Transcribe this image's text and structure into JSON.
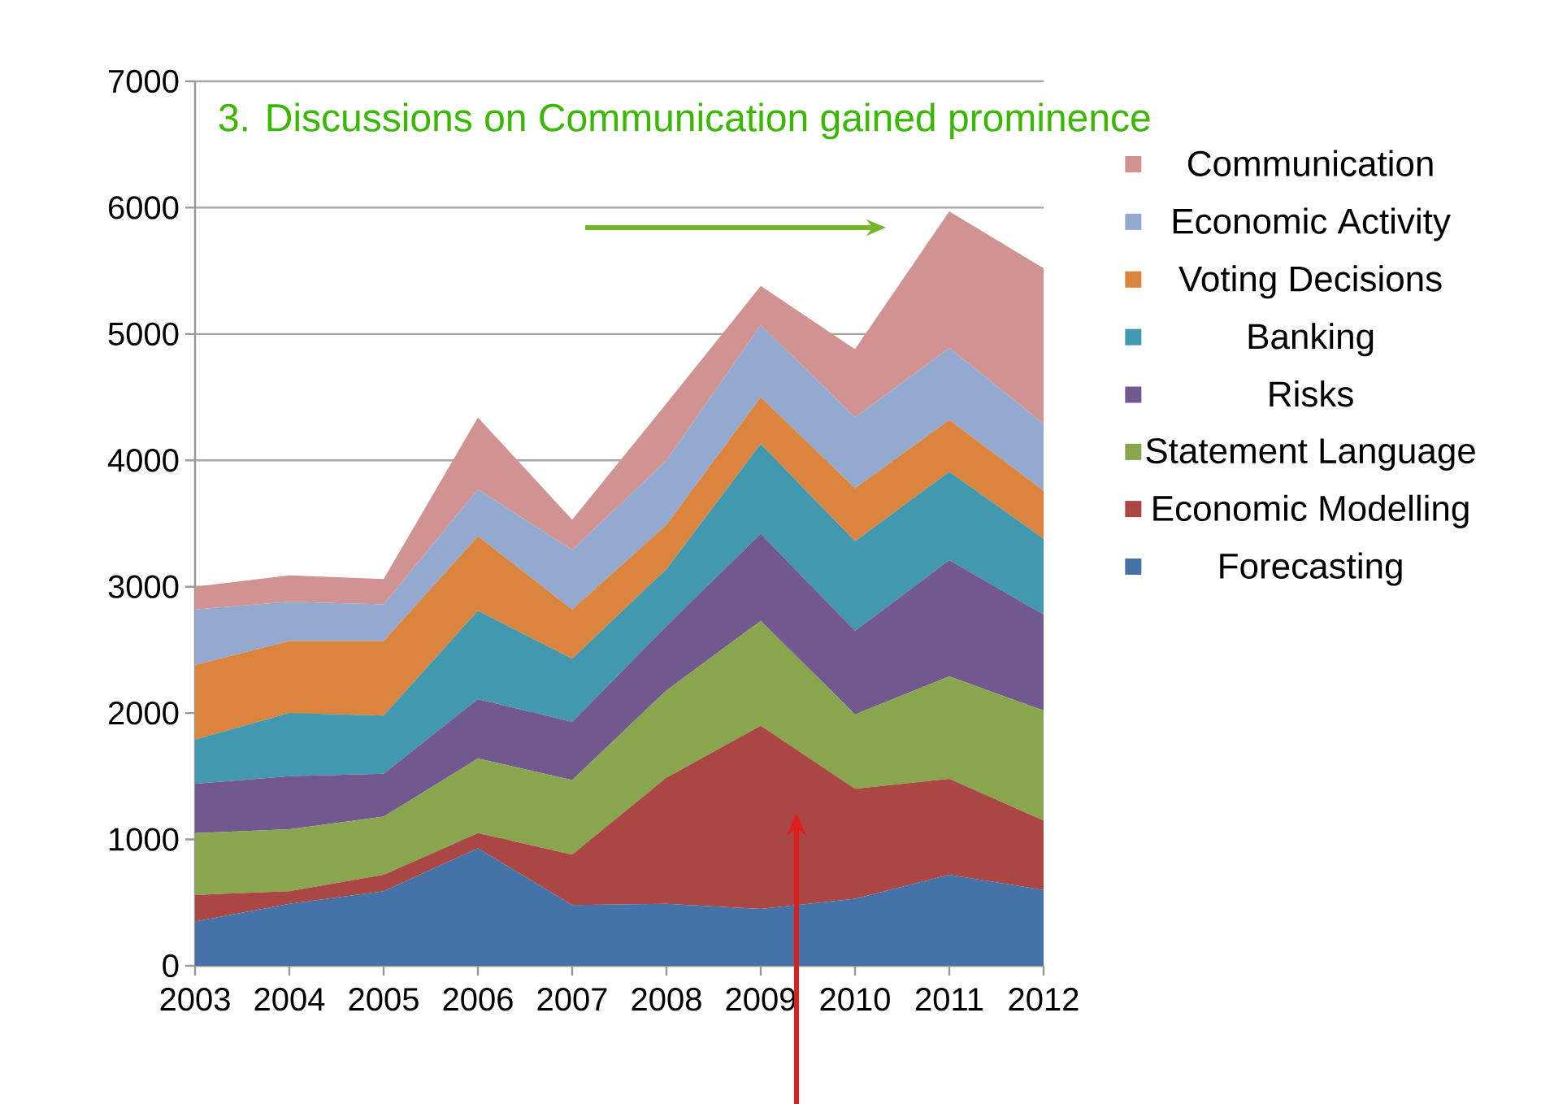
{
  "chart_data": {
    "type": "area",
    "stacked": true,
    "annotations": [
      "3. Discussions on Communication  gained prominence"
    ],
    "categories": [
      "2003",
      "2004",
      "2005",
      "2006",
      "2007",
      "2008",
      "2009",
      "2010",
      "2011",
      "2012"
    ],
    "series": [
      {
        "name": "Forecasting",
        "color": "#4572a7",
        "values": [
          350,
          490,
          590,
          930,
          480,
          490,
          450,
          530,
          720,
          600
        ]
      },
      {
        "name": "Economic Modelling",
        "color": "#aa4643",
        "values": [
          210,
          100,
          130,
          120,
          400,
          1000,
          1450,
          870,
          760,
          550
        ]
      },
      {
        "name": "Statement Language",
        "color": "#89a54e",
        "values": [
          490,
          490,
          460,
          590,
          590,
          690,
          830,
          590,
          810,
          870
        ]
      },
      {
        "name": "Risks",
        "color": "#71588f",
        "values": [
          390,
          420,
          340,
          470,
          460,
          510,
          690,
          660,
          920,
          760
        ]
      },
      {
        "name": "Banking",
        "color": "#4198af",
        "values": [
          350,
          500,
          460,
          700,
          500,
          450,
          710,
          710,
          700,
          600
        ]
      },
      {
        "name": "Voting Decisions",
        "color": "#db843d",
        "values": [
          590,
          570,
          590,
          590,
          390,
          350,
          370,
          420,
          410,
          380
        ]
      },
      {
        "name": "Economic Activity",
        "color": "#93a9cf",
        "values": [
          440,
          310,
          290,
          370,
          470,
          510,
          570,
          560,
          570,
          530
        ]
      },
      {
        "name": "Communication",
        "color": "#d19392",
        "values": [
          180,
          210,
          200,
          570,
          240,
          450,
          310,
          540,
          1080,
          1230
        ]
      }
    ],
    "ylim": [
      0,
      7000
    ],
    "yticks": [
      0,
      1000,
      2000,
      3000,
      4000,
      5000,
      6000,
      7000
    ],
    "grid": "y",
    "legend": "right"
  }
}
